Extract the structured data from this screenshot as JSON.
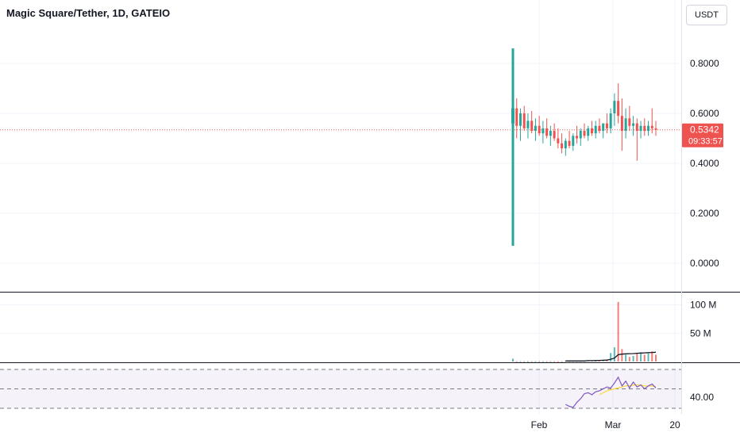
{
  "header": {
    "title": "Magic Square/Tether, 1D, GATEIO",
    "currency_button": "USDT"
  },
  "price_axis": {
    "ticks": [
      "0.8000",
      "0.6000",
      "0.4000",
      "0.2000",
      "0.0000"
    ],
    "last_price_label": "0.5342",
    "countdown_label": "09:33:57"
  },
  "volume_axis": {
    "ticks": [
      "100 M",
      "50 M"
    ]
  },
  "rsi_axis": {
    "ticks": [
      "40.00"
    ]
  },
  "time_axis": {
    "ticks": [
      "Feb",
      "Mar",
      "20"
    ]
  },
  "colors": {
    "up": "#26a69a",
    "down": "#ef5350",
    "last_price": "#ef5350",
    "rsi_line": "#7e57c2",
    "rsi_ma": "#fdd835",
    "volume_ma": "#131722"
  },
  "chart_data": [
    {
      "type": "candlestick",
      "title": "Magic Square/Tether, 1D, GATEIO",
      "x_unit": "days since listing",
      "ylim": [
        -0.05,
        0.92
      ],
      "last_price": 0.5342,
      "candles": [
        {
          "o": 0.56,
          "h": 0.86,
          "l": 0.07,
          "c": 0.62
        },
        {
          "o": 0.62,
          "h": 0.66,
          "l": 0.5,
          "c": 0.55
        },
        {
          "o": 0.55,
          "h": 0.62,
          "l": 0.49,
          "c": 0.6
        },
        {
          "o": 0.6,
          "h": 0.63,
          "l": 0.53,
          "c": 0.54
        },
        {
          "o": 0.54,
          "h": 0.6,
          "l": 0.5,
          "c": 0.57
        },
        {
          "o": 0.57,
          "h": 0.61,
          "l": 0.52,
          "c": 0.53
        },
        {
          "o": 0.53,
          "h": 0.58,
          "l": 0.49,
          "c": 0.55
        },
        {
          "o": 0.55,
          "h": 0.59,
          "l": 0.51,
          "c": 0.52
        },
        {
          "o": 0.52,
          "h": 0.57,
          "l": 0.48,
          "c": 0.54
        },
        {
          "o": 0.54,
          "h": 0.58,
          "l": 0.5,
          "c": 0.51
        },
        {
          "o": 0.51,
          "h": 0.55,
          "l": 0.47,
          "c": 0.53
        },
        {
          "o": 0.53,
          "h": 0.56,
          "l": 0.49,
          "c": 0.5
        },
        {
          "o": 0.5,
          "h": 0.54,
          "l": 0.46,
          "c": 0.48
        },
        {
          "o": 0.48,
          "h": 0.52,
          "l": 0.44,
          "c": 0.46
        },
        {
          "o": 0.46,
          "h": 0.5,
          "l": 0.43,
          "c": 0.49
        },
        {
          "o": 0.49,
          "h": 0.53,
          "l": 0.46,
          "c": 0.47
        },
        {
          "o": 0.47,
          "h": 0.52,
          "l": 0.45,
          "c": 0.51
        },
        {
          "o": 0.51,
          "h": 0.55,
          "l": 0.48,
          "c": 0.5
        },
        {
          "o": 0.5,
          "h": 0.54,
          "l": 0.47,
          "c": 0.53
        },
        {
          "o": 0.53,
          "h": 0.56,
          "l": 0.5,
          "c": 0.51
        },
        {
          "o": 0.51,
          "h": 0.55,
          "l": 0.49,
          "c": 0.54
        },
        {
          "o": 0.54,
          "h": 0.57,
          "l": 0.51,
          "c": 0.52
        },
        {
          "o": 0.52,
          "h": 0.57,
          "l": 0.5,
          "c": 0.55
        },
        {
          "o": 0.55,
          "h": 0.58,
          "l": 0.52,
          "c": 0.53
        },
        {
          "o": 0.53,
          "h": 0.56,
          "l": 0.5,
          "c": 0.56
        },
        {
          "o": 0.56,
          "h": 0.6,
          "l": 0.52,
          "c": 0.54
        },
        {
          "o": 0.54,
          "h": 0.62,
          "l": 0.52,
          "c": 0.6
        },
        {
          "o": 0.6,
          "h": 0.68,
          "l": 0.55,
          "c": 0.65
        },
        {
          "o": 0.65,
          "h": 0.72,
          "l": 0.56,
          "c": 0.59
        },
        {
          "o": 0.59,
          "h": 0.66,
          "l": 0.45,
          "c": 0.53
        },
        {
          "o": 0.53,
          "h": 0.62,
          "l": 0.5,
          "c": 0.58
        },
        {
          "o": 0.58,
          "h": 0.63,
          "l": 0.53,
          "c": 0.55
        },
        {
          "o": 0.55,
          "h": 0.59,
          "l": 0.51,
          "c": 0.56
        },
        {
          "o": 0.56,
          "h": 0.58,
          "l": 0.41,
          "c": 0.53
        },
        {
          "o": 0.53,
          "h": 0.57,
          "l": 0.5,
          "c": 0.55
        },
        {
          "o": 0.55,
          "h": 0.58,
          "l": 0.51,
          "c": 0.53
        },
        {
          "o": 0.53,
          "h": 0.57,
          "l": 0.51,
          "c": 0.55
        },
        {
          "o": 0.55,
          "h": 0.62,
          "l": 0.52,
          "c": 0.54
        },
        {
          "o": 0.54,
          "h": 0.57,
          "l": 0.51,
          "c": 0.5342
        }
      ],
      "volume": [
        5,
        0.5,
        0.5,
        0.5,
        0.5,
        0.5,
        0.5,
        0.5,
        0.5,
        0.5,
        0.5,
        0.5,
        0.5,
        0.5,
        1,
        1,
        1,
        1,
        1,
        1,
        2,
        2,
        2,
        2,
        3,
        3,
        15,
        25,
        105,
        22,
        12,
        8,
        10,
        14,
        16,
        12,
        14,
        18,
        12
      ],
      "volume_unit": "M",
      "volume_ma": [
        null,
        null,
        null,
        null,
        null,
        null,
        null,
        null,
        null,
        null,
        null,
        null,
        null,
        null,
        1,
        1,
        1,
        1,
        1,
        1,
        1.5,
        1.5,
        1.7,
        1.9,
        2.2,
        2.5,
        4,
        6,
        12,
        13,
        13.5,
        13.8,
        14,
        14.5,
        15,
        15.3,
        15.6,
        16,
        16.3
      ]
    },
    {
      "type": "line",
      "title": "RSI",
      "ylim": [
        30,
        75
      ],
      "bands": [
        70,
        50,
        30
      ],
      "series": [
        {
          "values": [
            null,
            null,
            null,
            null,
            null,
            null,
            null,
            null,
            null,
            null,
            null,
            null,
            null,
            null,
            34,
            32,
            31,
            36,
            40,
            45,
            46,
            44,
            47,
            48,
            50,
            52,
            51,
            56,
            62,
            53,
            58,
            51,
            57,
            52,
            54,
            50,
            53,
            55,
            51
          ]
        },
        {
          "values": [
            null,
            null,
            null,
            null,
            null,
            null,
            null,
            null,
            null,
            null,
            null,
            null,
            null,
            null,
            null,
            null,
            null,
            null,
            null,
            null,
            null,
            null,
            null,
            44,
            46,
            48,
            49,
            50,
            51,
            52,
            53,
            53,
            54,
            54,
            54,
            53,
            53,
            53,
            52
          ]
        }
      ]
    }
  ]
}
